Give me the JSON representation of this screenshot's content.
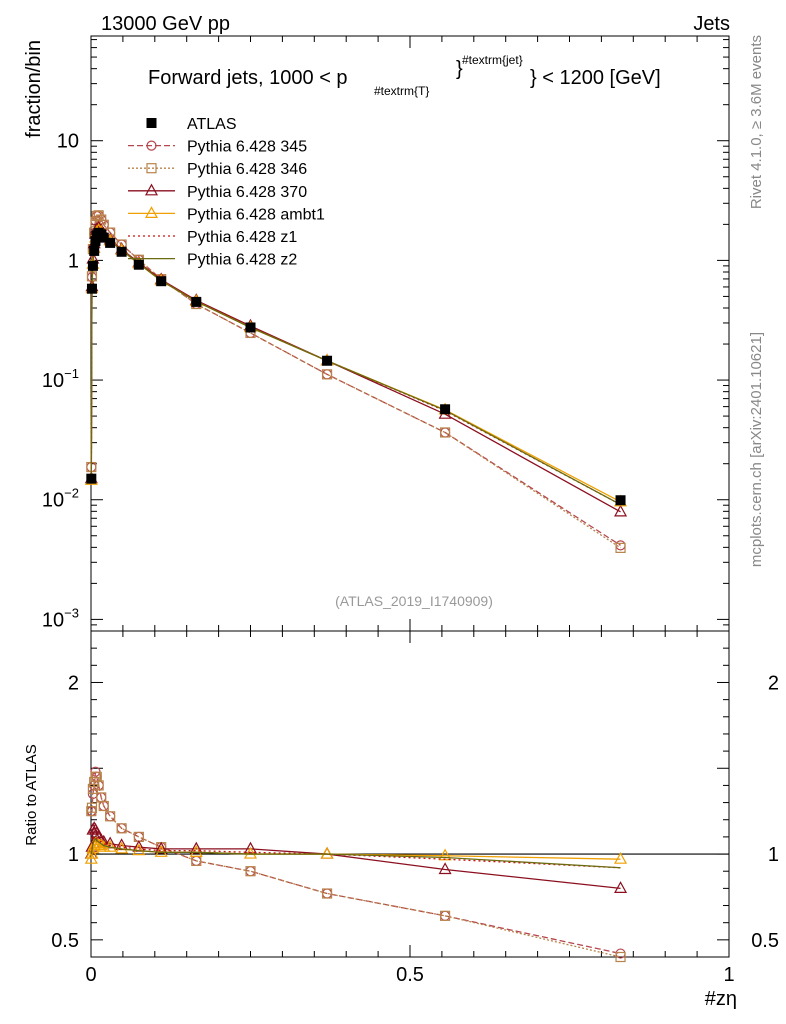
{
  "header": {
    "left": "13000 GeV pp",
    "right": "Jets"
  },
  "side_labels": {
    "rivet": "Rivet 4.1.0, ≥ 3.6M events",
    "mcplots": "mcplots.cern.ch [arXiv:2401.10621]"
  },
  "chart_data": {
    "type": "line",
    "title": "Forward jets, 1000 < p",
    "title_subscript": "#textrm{T}",
    "title_superscript": "#textrm{jet}",
    "title_suffix": "} < 1200 [GeV]",
    "analysis_id": "(ATLAS_2019_I1740909)",
    "xlabel": "#zη",
    "ylabel": "fraction/bin",
    "ratio_ylabel": "Ratio to ATLAS",
    "xlim": [
      0,
      1
    ],
    "ylim": [
      0.0008,
      75
    ],
    "yscale": "log",
    "ratio_ylim": [
      0.4,
      2.3
    ],
    "x_tick_labels": [
      "0",
      "0.5",
      "1"
    ],
    "x_tick_values": [
      0,
      0.5,
      1
    ],
    "y_tick_values": [
      10,
      1,
      0.1,
      0.01,
      0.001
    ],
    "y_tick_labels": [
      {
        "base": "10",
        "exp": ""
      },
      {
        "base": "1",
        "exp": ""
      },
      {
        "base": "10",
        "exp": "−1"
      },
      {
        "base": "10",
        "exp": "−2"
      },
      {
        "base": "10",
        "exp": "−3"
      }
    ],
    "ratio_tick_values": [
      2,
      1,
      0.5
    ],
    "ratio_tick_labels": [
      "2",
      "1",
      "0.5"
    ],
    "x": [
      0.0005,
      0.0015,
      0.003,
      0.005,
      0.007,
      0.009,
      0.012,
      0.016,
      0.02,
      0.03,
      0.048,
      0.075,
      0.11,
      0.165,
      0.25,
      0.37,
      0.555,
      0.83
    ],
    "data": {
      "name": "ATLAS",
      "values": [
        0.015,
        0.58,
        0.9,
        1.2,
        1.45,
        1.62,
        1.7,
        1.65,
        1.55,
        1.4,
        1.18,
        0.92,
        0.67,
        0.45,
        0.275,
        0.145,
        0.057,
        0.0099
      ]
    },
    "series": [
      {
        "name": "Pythia 6.428 345",
        "color": "#b5454e",
        "dash": "6,3",
        "marker": "circle",
        "ratio": [
          1.25,
          1.25,
          1.35,
          1.4,
          1.48,
          1.45,
          1.4,
          1.33,
          1.28,
          1.22,
          1.15,
          1.1,
          1.04,
          0.96,
          0.9,
          0.77,
          0.64,
          0.42
        ]
      },
      {
        "name": "Pythia 6.428 346",
        "color": "#b8834a",
        "dash": "2,2",
        "marker": "square",
        "ratio": [
          1.25,
          1.27,
          1.38,
          1.42,
          1.45,
          1.45,
          1.4,
          1.33,
          1.28,
          1.22,
          1.15,
          1.1,
          1.04,
          0.96,
          0.9,
          0.77,
          0.64,
          0.4
        ]
      },
      {
        "name": "Pythia 6.428 370",
        "color": "#8b0f1f",
        "dash": "",
        "marker": "triangle",
        "ratio": [
          1.0,
          1.04,
          1.14,
          1.15,
          1.14,
          1.12,
          1.1,
          1.08,
          1.07,
          1.06,
          1.05,
          1.04,
          1.03,
          1.03,
          1.03,
          1.0,
          0.91,
          0.8
        ]
      },
      {
        "name": "Pythia 6.428 ambt1",
        "color": "#f0a000",
        "dash": "",
        "marker": "triangle",
        "ratio": [
          0.97,
          1.0,
          1.03,
          1.05,
          1.06,
          1.06,
          1.05,
          1.05,
          1.04,
          1.04,
          1.03,
          1.02,
          1.01,
          1.01,
          1.0,
          1.0,
          0.99,
          0.97
        ]
      },
      {
        "name": "Pythia 6.428 z1",
        "color": "#cc1111",
        "dash": "2,3",
        "marker": "none",
        "ratio": [
          1.0,
          1.03,
          1.08,
          1.1,
          1.1,
          1.09,
          1.08,
          1.07,
          1.06,
          1.05,
          1.04,
          1.03,
          1.02,
          1.02,
          1.01,
          1.0,
          0.97,
          0.92
        ]
      },
      {
        "name": "Pythia 6.428 z2",
        "color": "#6b6b10",
        "dash": "",
        "marker": "none",
        "ratio": [
          1.0,
          1.02,
          1.06,
          1.08,
          1.09,
          1.08,
          1.07,
          1.06,
          1.05,
          1.04,
          1.03,
          1.02,
          1.01,
          1.01,
          1.0,
          1.0,
          0.98,
          0.92
        ]
      }
    ]
  }
}
